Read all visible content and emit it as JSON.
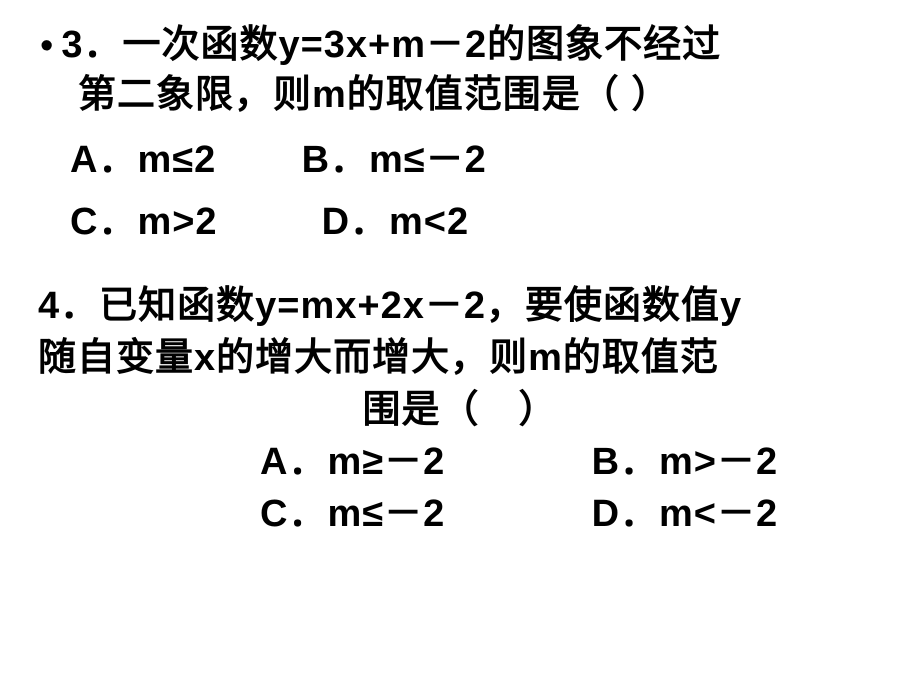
{
  "q3": {
    "bullet": "•",
    "line1": "3．一次函数y=3x+m－2的图象不经过",
    "line2": "第二象限，则m的取值范围是（ ）",
    "optA": "A．m≤2",
    "optB": "B．m≤－2",
    "optC": "C．m>2",
    "optD": "D．m<2"
  },
  "q4": {
    "line1": "4．已知函数y=mx+2x－2，要使函数值y",
    "line2": "随自变量x的增大而增大，则m的取值范",
    "line3": "围是（　）",
    "optA": "A．m≥－2",
    "optB": "B．m>－2",
    "optC": "C．m≤－2",
    "optD": "D．m<－2"
  },
  "style": {
    "font_family": "SimHei",
    "text_color": "#000000",
    "background_color": "#ffffff",
    "base_fontsize_pt": 28,
    "font_weight": 900
  }
}
